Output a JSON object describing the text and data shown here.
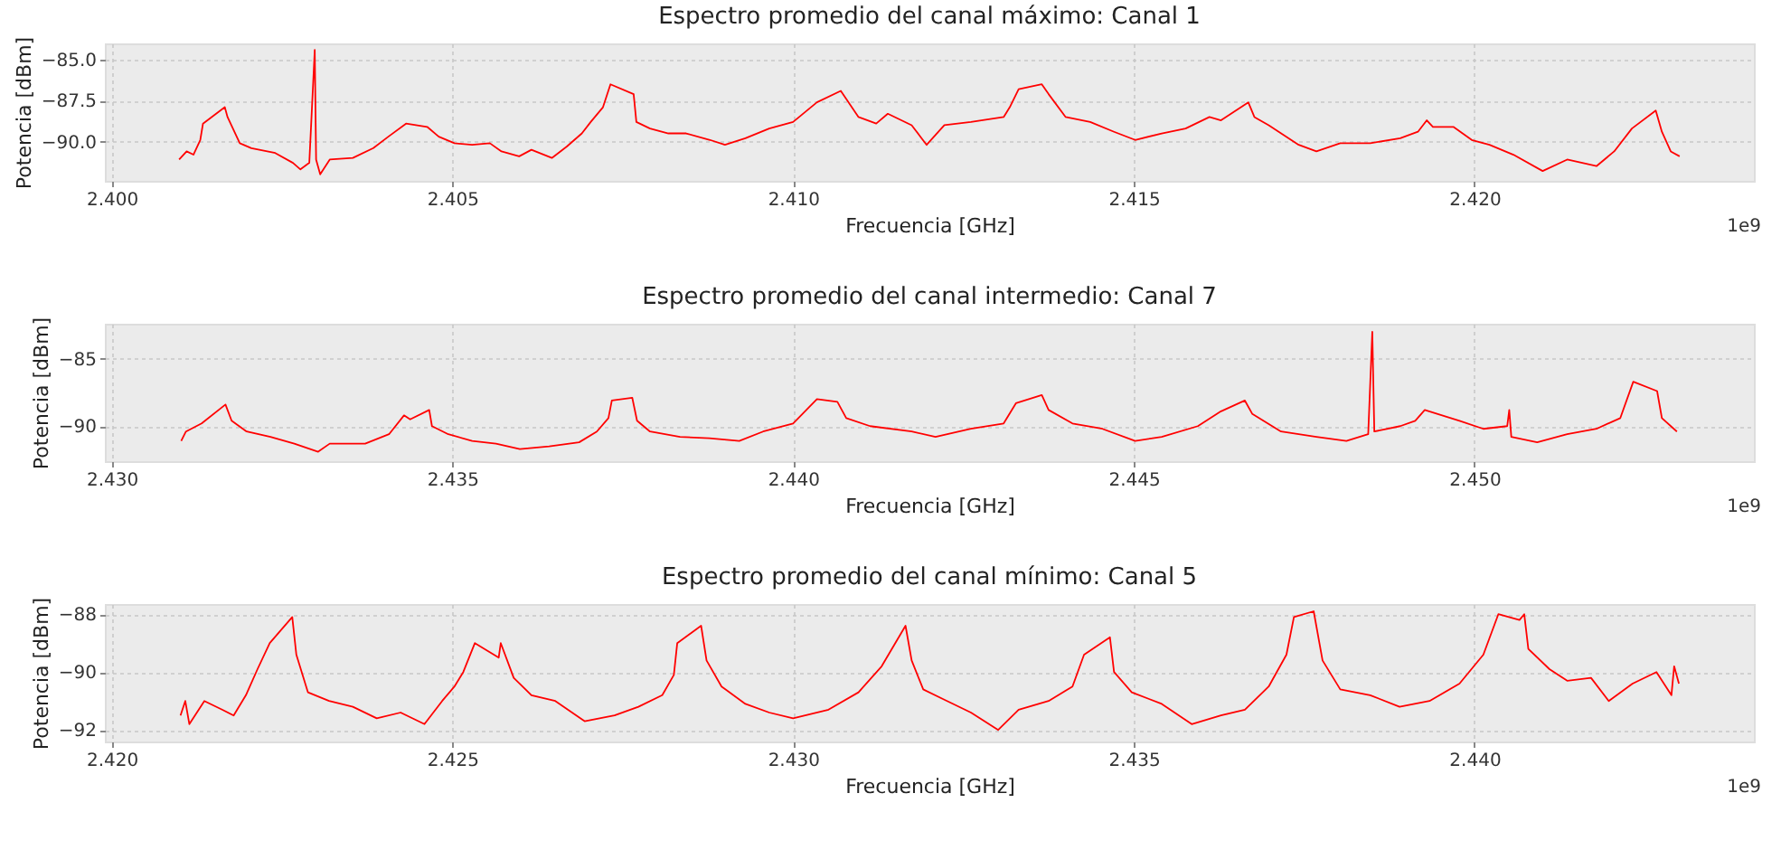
{
  "chart_data": [
    {
      "type": "line",
      "title": "Espectro promedio del canal máximo: Canal 1",
      "xlabel": "Frecuencia [GHz]",
      "ylabel": "Potencia [dBm]",
      "color": "#ff0000",
      "grid": true,
      "annotations": [
        "1e9"
      ],
      "xlim": [
        2.3999,
        2.4241
      ],
      "ylim": [
        -92.4,
        -84.0
      ],
      "xticks": [
        {
          "value": 2.4,
          "label": "2.400"
        },
        {
          "value": 2.405,
          "label": "2.405"
        },
        {
          "value": 2.41,
          "label": "2.410"
        },
        {
          "value": 2.415,
          "label": "2.415"
        },
        {
          "value": 2.42,
          "label": "2.420"
        }
      ],
      "yticks": [
        {
          "value": -85,
          "label": "−85.0"
        },
        {
          "value": -87.5,
          "label": "−87.5"
        },
        {
          "value": -90,
          "label": "−90.0"
        }
      ],
      "x": [
        2.40099,
        2.4011,
        2.4012,
        2.4013,
        2.40134,
        2.40166,
        2.4017,
        2.40188,
        2.40205,
        2.4024,
        2.40266,
        2.40277,
        2.4029,
        2.40298,
        2.403,
        2.40306,
        2.4032,
        2.40354,
        2.40384,
        2.40406,
        2.40432,
        2.40463,
        2.4048,
        2.40503,
        2.40529,
        2.40555,
        2.40572,
        2.40598,
        2.40616,
        2.40646,
        2.40668,
        2.4069,
        2.40703,
        2.40721,
        2.40732,
        2.40766,
        2.4077,
        2.4079,
        2.40817,
        2.40843,
        2.40878,
        2.409,
        2.4093,
        2.40965,
        2.41,
        2.41035,
        2.4107,
        2.41096,
        2.41122,
        2.41139,
        2.41174,
        2.41196,
        2.41222,
        2.41261,
        2.41309,
        2.41318,
        2.41331,
        2.41365,
        2.41375,
        2.414,
        2.41436,
        2.41471,
        2.41502,
        2.41541,
        2.41576,
        2.41611,
        2.41628,
        2.41668,
        2.41677,
        2.41698,
        2.41742,
        2.41768,
        2.41803,
        2.41847,
        2.41891,
        2.41917,
        2.4193,
        2.41939,
        2.41969,
        2.41996,
        2.42022,
        2.42057,
        2.421,
        2.42136,
        2.42179,
        2.42205,
        2.42231,
        2.42266,
        2.42275,
        2.42288,
        2.42301
      ],
      "values": [
        -91.1,
        -90.6,
        -90.8,
        -89.9,
        -88.9,
        -87.9,
        -88.5,
        -90.1,
        -90.4,
        -90.7,
        -91.3,
        -91.7,
        -91.3,
        -84.4,
        -91.1,
        -92.0,
        -91.1,
        -91.0,
        -90.4,
        -89.7,
        -88.9,
        -89.1,
        -89.7,
        -90.1,
        -90.2,
        -90.1,
        -90.6,
        -90.9,
        -90.5,
        -91.0,
        -90.3,
        -89.5,
        -88.8,
        -87.9,
        -86.5,
        -87.1,
        -88.8,
        -89.2,
        -89.5,
        -89.5,
        -89.9,
        -90.2,
        -89.8,
        -89.2,
        -88.8,
        -87.6,
        -86.9,
        -88.5,
        -88.9,
        -88.3,
        -89.0,
        -90.2,
        -89.0,
        -88.8,
        -88.5,
        -87.9,
        -86.8,
        -86.5,
        -87.1,
        -88.5,
        -88.8,
        -89.4,
        -89.9,
        -89.5,
        -89.2,
        -88.5,
        -88.7,
        -87.6,
        -88.5,
        -89.0,
        -90.2,
        -90.6,
        -90.1,
        -90.1,
        -89.8,
        -89.4,
        -88.7,
        -89.1,
        -89.1,
        -89.9,
        -90.2,
        -90.8,
        -91.8,
        -91.1,
        -91.5,
        -90.6,
        -89.2,
        -88.1,
        -89.4,
        -90.6,
        -90.9
      ]
    },
    {
      "type": "line",
      "title": "Espectro promedio del canal intermedio: Canal 7",
      "xlabel": "Frecuencia [GHz]",
      "ylabel": "Potencia [dBm]",
      "color": "#ff0000",
      "grid": true,
      "annotations": [
        "1e9"
      ],
      "xlim": [
        2.4299,
        2.4541
      ],
      "ylim": [
        -92.6,
        -82.4
      ],
      "xticks": [
        {
          "value": 2.43,
          "label": "2.430"
        },
        {
          "value": 2.435,
          "label": "2.435"
        },
        {
          "value": 2.44,
          "label": "2.440"
        },
        {
          "value": 2.445,
          "label": "2.445"
        },
        {
          "value": 2.45,
          "label": "2.450"
        }
      ],
      "yticks": [
        {
          "value": -85,
          "label": "−85"
        },
        {
          "value": -90,
          "label": "−90"
        }
      ],
      "x": [
        2.43102,
        2.43109,
        2.43132,
        2.43167,
        2.43176,
        2.43198,
        2.43233,
        2.43268,
        2.43303,
        2.4332,
        2.43372,
        2.43407,
        2.43429,
        2.43438,
        2.43466,
        2.4347,
        2.43494,
        2.43529,
        2.43564,
        2.43599,
        2.43642,
        2.43686,
        2.43712,
        2.43729,
        2.43734,
        2.43764,
        2.43771,
        2.4379,
        2.43834,
        2.43877,
        2.43921,
        2.43956,
        2.44,
        2.44035,
        2.44065,
        2.44078,
        2.44113,
        2.44174,
        2.44209,
        2.44261,
        2.44309,
        2.44327,
        2.44365,
        2.44375,
        2.4441,
        2.44454,
        2.44502,
        2.44541,
        2.44594,
        2.44628,
        2.44663,
        2.44674,
        2.44716,
        2.44768,
        2.44812,
        2.44844,
        2.4485,
        2.44853,
        2.44891,
        2.44913,
        2.44927,
        2.44978,
        2.45013,
        2.45048,
        2.45051,
        2.45054,
        2.45092,
        2.45136,
        2.45179,
        2.45214,
        2.45233,
        2.45268,
        2.45275,
        2.45297
      ],
      "values": [
        -91.1,
        -90.4,
        -89.8,
        -88.4,
        -89.6,
        -90.4,
        -90.8,
        -91.3,
        -91.9,
        -91.3,
        -91.3,
        -90.6,
        -89.2,
        -89.5,
        -88.8,
        -90.0,
        -90.6,
        -91.1,
        -91.3,
        -91.7,
        -91.5,
        -91.2,
        -90.4,
        -89.4,
        -88.1,
        -87.9,
        -89.6,
        -90.4,
        -90.8,
        -90.9,
        -91.1,
        -90.4,
        -89.8,
        -88.0,
        -88.2,
        -89.4,
        -90.0,
        -90.4,
        -90.8,
        -90.2,
        -89.8,
        -88.3,
        -87.7,
        -88.8,
        -89.8,
        -90.2,
        -91.1,
        -90.8,
        -90.0,
        -88.9,
        -88.1,
        -89.1,
        -90.4,
        -90.8,
        -91.1,
        -90.6,
        -83.0,
        -90.4,
        -90.0,
        -89.6,
        -88.8,
        -89.6,
        -90.2,
        -90.0,
        -88.8,
        -90.8,
        -91.2,
        -90.6,
        -90.2,
        -89.4,
        -86.7,
        -87.4,
        -89.4,
        -90.4
      ]
    },
    {
      "type": "line",
      "title": "Espectro promedio del canal mínimo: Canal 5",
      "xlabel": "Frecuencia [GHz]",
      "ylabel": "Potencia [dBm]",
      "color": "#ff0000",
      "grid": true,
      "annotations": [
        "1e9"
      ],
      "xlim": [
        2.4199,
        2.4441
      ],
      "ylim": [
        -92.4,
        -87.65
      ],
      "xticks": [
        {
          "value": 2.42,
          "label": "2.420"
        },
        {
          "value": 2.425,
          "label": "2.425"
        },
        {
          "value": 2.43,
          "label": "2.430"
        },
        {
          "value": 2.435,
          "label": "2.435"
        },
        {
          "value": 2.44,
          "label": "2.440"
        }
      ],
      "yticks": [
        {
          "value": -88,
          "label": "−88"
        },
        {
          "value": -90,
          "label": "−90"
        },
        {
          "value": -92,
          "label": "−92"
        }
      ],
      "x": [
        2.42101,
        2.42108,
        2.42114,
        2.42136,
        2.42162,
        2.42179,
        2.42197,
        2.42214,
        2.42232,
        2.42265,
        2.42271,
        2.42288,
        2.42319,
        2.42354,
        2.42389,
        2.42424,
        2.42459,
        2.42485,
        2.42503,
        2.42516,
        2.42533,
        2.42568,
        2.42571,
        2.4259,
        2.42616,
        2.42651,
        2.42694,
        2.42738,
        2.42773,
        2.42808,
        2.42825,
        2.4283,
        2.42865,
        2.42873,
        2.42895,
        2.4293,
        2.42965,
        2.43,
        2.43052,
        2.43096,
        2.4313,
        2.43165,
        2.43174,
        2.43191,
        2.43226,
        2.43261,
        2.43301,
        2.43331,
        2.43375,
        2.4341,
        2.43427,
        2.43465,
        2.43471,
        2.43497,
        2.43541,
        2.43585,
        2.43628,
        2.43663,
        2.43698,
        2.43724,
        2.43735,
        2.43764,
        2.43777,
        2.43803,
        2.43847,
        2.4389,
        2.43934,
        2.43978,
        2.44013,
        2.44035,
        2.44066,
        2.44073,
        2.44079,
        2.4411,
        2.44136,
        2.44171,
        2.44197,
        2.44232,
        2.44267,
        2.44289,
        2.44293,
        2.443
      ],
      "values": [
        -91.5,
        -91.0,
        -91.8,
        -91.0,
        -91.3,
        -91.5,
        -90.8,
        -89.9,
        -89.0,
        -88.1,
        -89.4,
        -90.7,
        -91.0,
        -91.2,
        -91.6,
        -91.4,
        -91.8,
        -91.0,
        -90.5,
        -90.0,
        -89.0,
        -89.5,
        -89.0,
        -90.2,
        -90.8,
        -91.0,
        -91.7,
        -91.5,
        -91.2,
        -90.8,
        -90.1,
        -89.0,
        -88.4,
        -89.6,
        -90.5,
        -91.1,
        -91.4,
        -91.6,
        -91.3,
        -90.7,
        -89.8,
        -88.4,
        -89.6,
        -90.6,
        -91.0,
        -91.4,
        -92.0,
        -91.3,
        -91.0,
        -90.5,
        -89.4,
        -88.8,
        -90.0,
        -90.7,
        -91.1,
        -91.8,
        -91.5,
        -91.3,
        -90.5,
        -89.4,
        -88.1,
        -87.9,
        -89.6,
        -90.6,
        -90.8,
        -91.2,
        -91.0,
        -90.4,
        -89.4,
        -88.0,
        -88.2,
        -88.0,
        -89.2,
        -89.9,
        -90.3,
        -90.2,
        -91.0,
        -90.4,
        -90.0,
        -90.8,
        -89.8,
        -90.4
      ]
    }
  ]
}
